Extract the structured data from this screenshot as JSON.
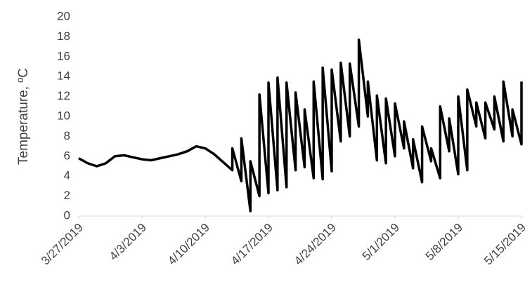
{
  "chart_data": {
    "type": "line",
    "y_label": "Temperature, ºC",
    "x": [
      "3/27/2019",
      "3/28/2019",
      "3/29/2019",
      "3/30/2019",
      "3/31/2019",
      "4/1/2019",
      "4/2/2019",
      "4/3/2019",
      "4/4/2019",
      "4/5/2019",
      "4/6/2019",
      "4/7/2019",
      "4/8/2019",
      "4/9/2019",
      "4/10/2019",
      "4/11/2019",
      "4/12/2019",
      "4/13/2019",
      "4/13/2019",
      "4/14/2019",
      "4/14/2019",
      "4/15/2019",
      "4/15/2019",
      "4/16/2019",
      "4/16/2019",
      "4/17/2019",
      "4/17/2019",
      "4/18/2019",
      "4/18/2019",
      "4/19/2019",
      "4/19/2019",
      "4/20/2019",
      "4/20/2019",
      "4/21/2019",
      "4/21/2019",
      "4/22/2019",
      "4/22/2019",
      "4/23/2019",
      "4/23/2019",
      "4/24/2019",
      "4/24/2019",
      "4/25/2019",
      "4/25/2019",
      "4/26/2019",
      "4/26/2019",
      "4/27/2019",
      "4/27/2019",
      "4/28/2019",
      "4/28/2019",
      "4/29/2019",
      "4/29/2019",
      "4/30/2019",
      "4/30/2019",
      "5/1/2019",
      "5/1/2019",
      "5/2/2019",
      "5/2/2019",
      "5/3/2019",
      "5/3/2019",
      "5/4/2019",
      "5/4/2019",
      "5/5/2019",
      "5/5/2019",
      "5/6/2019",
      "5/6/2019",
      "5/7/2019",
      "5/7/2019",
      "5/8/2019",
      "5/8/2019",
      "5/9/2019",
      "5/9/2019",
      "5/10/2019",
      "5/10/2019",
      "5/11/2019",
      "5/11/2019",
      "5/12/2019",
      "5/12/2019",
      "5/13/2019",
      "5/13/2019",
      "5/14/2019",
      "5/14/2019",
      "5/15/2019",
      "5/15/2019"
    ],
    "series": [
      {
        "name": "Temperature",
        "color": "#000000",
        "values": [
          5.8,
          5.3,
          5.0,
          5.3,
          6.0,
          6.1,
          5.9,
          5.7,
          5.6,
          5.8,
          6.0,
          6.2,
          6.5,
          7.0,
          6.8,
          6.2,
          5.4,
          4.6,
          6.8,
          3.5,
          7.8,
          0.5,
          5.5,
          2.0,
          12.2,
          2.3,
          13.4,
          2.6,
          13.9,
          2.9,
          13.4,
          4.6,
          12.4,
          4.9,
          10.7,
          3.8,
          13.5,
          3.7,
          14.9,
          4.5,
          14.7,
          7.5,
          15.4,
          8.0,
          15.3,
          9.0,
          17.7,
          10.0,
          13.5,
          5.6,
          12.1,
          5.3,
          11.8,
          6.0,
          11.3,
          6.8,
          9.5,
          4.8,
          7.7,
          3.4,
          9.0,
          5.5,
          6.8,
          3.8,
          11.0,
          6.5,
          9.8,
          4.2,
          12.0,
          4.6,
          12.7,
          9.0,
          11.4,
          7.8,
          11.4,
          8.7,
          12.0,
          7.5,
          13.5,
          8.0,
          10.7,
          7.2,
          13.5
        ]
      }
    ],
    "xlim": [
      "3/27/2019",
      "5/15/2019"
    ],
    "xticks": [
      "3/27/2019",
      "4/3/2019",
      "4/10/2019",
      "4/17/2019",
      "4/24/2019",
      "5/1/2019",
      "5/8/2019",
      "5/15/2019"
    ],
    "ylim": [
      0,
      20
    ],
    "yticks": [
      0,
      2,
      4,
      6,
      8,
      10,
      12,
      14,
      16,
      18,
      20
    ],
    "grid": false
  }
}
